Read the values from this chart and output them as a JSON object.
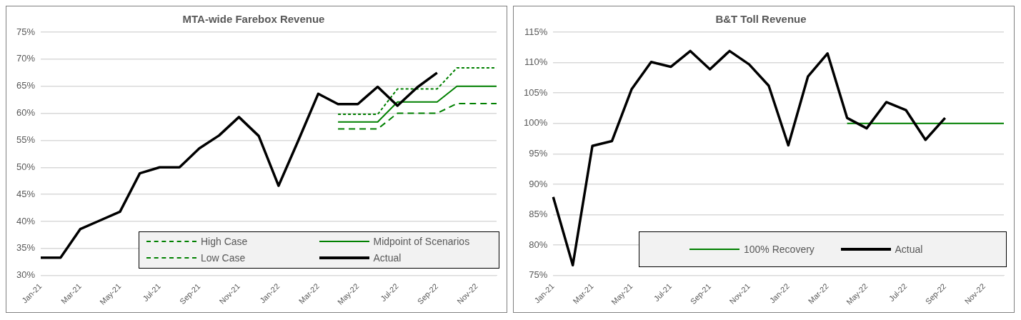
{
  "chart_data": [
    {
      "type": "line",
      "title": "MTA-wide Farebox Revenue",
      "categories": [
        "Jan-21",
        null,
        "Mar-21",
        null,
        "May-21",
        null,
        "Jul-21",
        null,
        "Sep-21",
        null,
        "Nov-21",
        null,
        "Jan-22",
        null,
        "Mar-22",
        null,
        "May-22",
        null,
        "Jul-22",
        null,
        "Sep-22",
        null,
        "Nov-22",
        null
      ],
      "series": [
        {
          "name": "High Case",
          "color": "#008000",
          "line_style": "dotted",
          "values": [
            null,
            null,
            null,
            null,
            null,
            null,
            null,
            null,
            null,
            null,
            null,
            null,
            null,
            null,
            null,
            59.8,
            59.8,
            59.8,
            64.5,
            64.5,
            64.5,
            68.4,
            68.4,
            68.4
          ]
        },
        {
          "name": "Midpoint of Scenarios",
          "color": "#008000",
          "line_style": "solid",
          "values": [
            null,
            null,
            null,
            null,
            null,
            null,
            null,
            null,
            null,
            null,
            null,
            null,
            null,
            null,
            null,
            58.4,
            58.4,
            58.4,
            62.1,
            62.1,
            62.1,
            65.0,
            65.0,
            65.0
          ]
        },
        {
          "name": "Low Case",
          "color": "#008000",
          "line_style": "dashed",
          "values": [
            null,
            null,
            null,
            null,
            null,
            null,
            null,
            null,
            null,
            null,
            null,
            null,
            null,
            null,
            null,
            57.1,
            57.1,
            57.1,
            60.0,
            60.0,
            60.0,
            61.8,
            61.8,
            61.8
          ]
        },
        {
          "name": "Actual",
          "color": "#000000",
          "line_style": "solid",
          "values": [
            33.3,
            33.3,
            38.6,
            40.2,
            41.8,
            48.9,
            50.0,
            50.0,
            53.5,
            55.9,
            59.3,
            55.8,
            46.6,
            55.0,
            63.6,
            61.7,
            61.7,
            64.9,
            61.4,
            64.8,
            67.5,
            null,
            null,
            null
          ]
        }
      ],
      "ylim": [
        30,
        75
      ],
      "yticks": [
        {
          "value": 30,
          "label": "30%"
        },
        {
          "value": 35,
          "label": "35%"
        },
        {
          "value": 40,
          "label": "40%"
        },
        {
          "value": 45,
          "label": "45%"
        },
        {
          "value": 50,
          "label": "50%"
        },
        {
          "value": 55,
          "label": "55%"
        },
        {
          "value": 60,
          "label": "60%"
        },
        {
          "value": 65,
          "label": "65%"
        },
        {
          "value": 70,
          "label": "70%"
        },
        {
          "value": 75,
          "label": "75%"
        }
      ],
      "grid": "y",
      "legend": "bottom right",
      "marker": "none"
    },
    {
      "type": "line",
      "title": "B&T Toll Revenue",
      "categories": [
        "Jan-21",
        null,
        "Mar-21",
        null,
        "May-21",
        null,
        "Jul-21",
        null,
        "Sep-21",
        null,
        "Nov-21",
        null,
        "Jan-22",
        null,
        "Mar-22",
        null,
        "May-22",
        null,
        "Jul-22",
        null,
        "Sep-22",
        null,
        "Nov-22",
        null
      ],
      "series": [
        {
          "name": "100% Recovery",
          "color": "#008000",
          "values": [
            null,
            null,
            null,
            null,
            null,
            null,
            null,
            null,
            null,
            null,
            null,
            null,
            null,
            null,
            null,
            100,
            100,
            100,
            100,
            100,
            100,
            100,
            100,
            100
          ]
        },
        {
          "name": "Actual",
          "color": "#000000",
          "values": [
            87.9,
            76.7,
            96.3,
            97.1,
            105.6,
            110.1,
            109.3,
            111.9,
            108.9,
            111.9,
            109.7,
            106.2,
            96.4,
            107.7,
            111.5,
            100.9,
            99.2,
            103.5,
            102.2,
            97.3,
            100.9,
            null,
            null,
            null
          ]
        }
      ],
      "ylim": [
        75,
        115
      ],
      "yticks": [
        {
          "value": 75,
          "label": "75%"
        },
        {
          "value": 80,
          "label": "80%"
        },
        {
          "value": 85,
          "label": "85%"
        },
        {
          "value": 90,
          "label": "90%"
        },
        {
          "value": 95,
          "label": "95%"
        },
        {
          "value": 100,
          "label": "100%"
        },
        {
          "value": 105,
          "label": "105%"
        },
        {
          "value": 110,
          "label": "110%"
        },
        {
          "value": 115,
          "label": "115%"
        }
      ],
      "grid": "y",
      "legend": "bottom right",
      "marker": "none"
    }
  ]
}
